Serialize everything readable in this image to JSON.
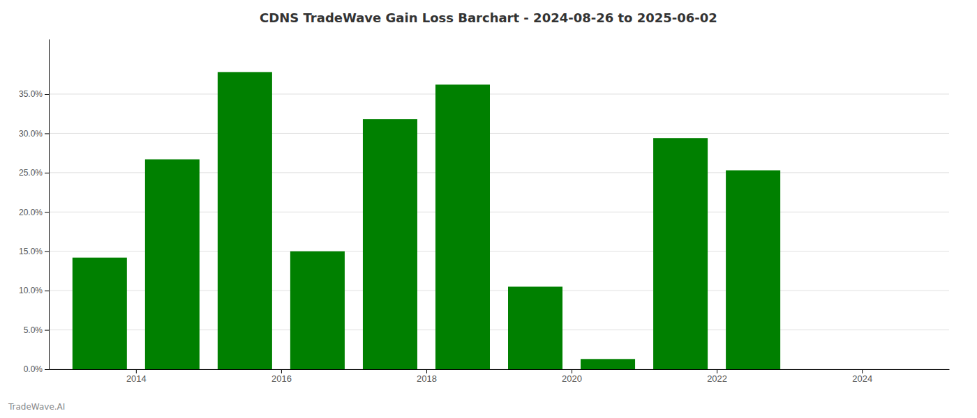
{
  "chart_data": {
    "type": "bar",
    "title": "CDNS TradeWave Gain Loss Barchart - 2024-08-26 to 2025-06-02",
    "annotations": [
      "TradeWave.AI"
    ],
    "x": [
      2013.5,
      2014.5,
      2015.5,
      2016.5,
      2017.5,
      2018.5,
      2019.5,
      2020.5,
      2021.5,
      2022.5
    ],
    "values": [
      0.142,
      0.267,
      0.378,
      0.15,
      0.318,
      0.362,
      0.105,
      0.013,
      0.294,
      0.253
    ],
    "color": "#008000",
    "xlim": [
      2012.8,
      2025.2
    ],
    "xticks": [
      2014,
      2016,
      2018,
      2020,
      2022,
      2024
    ],
    "ylim": [
      0,
      0.42
    ],
    "yticks": [
      {
        "value": 0.0,
        "label": "0.0%"
      },
      {
        "value": 0.05,
        "label": "5.0%"
      },
      {
        "value": 0.1,
        "label": "10.0%"
      },
      {
        "value": 0.15,
        "label": "15.0%"
      },
      {
        "value": 0.2,
        "label": "20.0%"
      },
      {
        "value": 0.25,
        "label": "25.0%"
      },
      {
        "value": 0.3,
        "label": "30.0%"
      },
      {
        "value": 0.35,
        "label": "35.0%"
      }
    ],
    "grid": true
  }
}
